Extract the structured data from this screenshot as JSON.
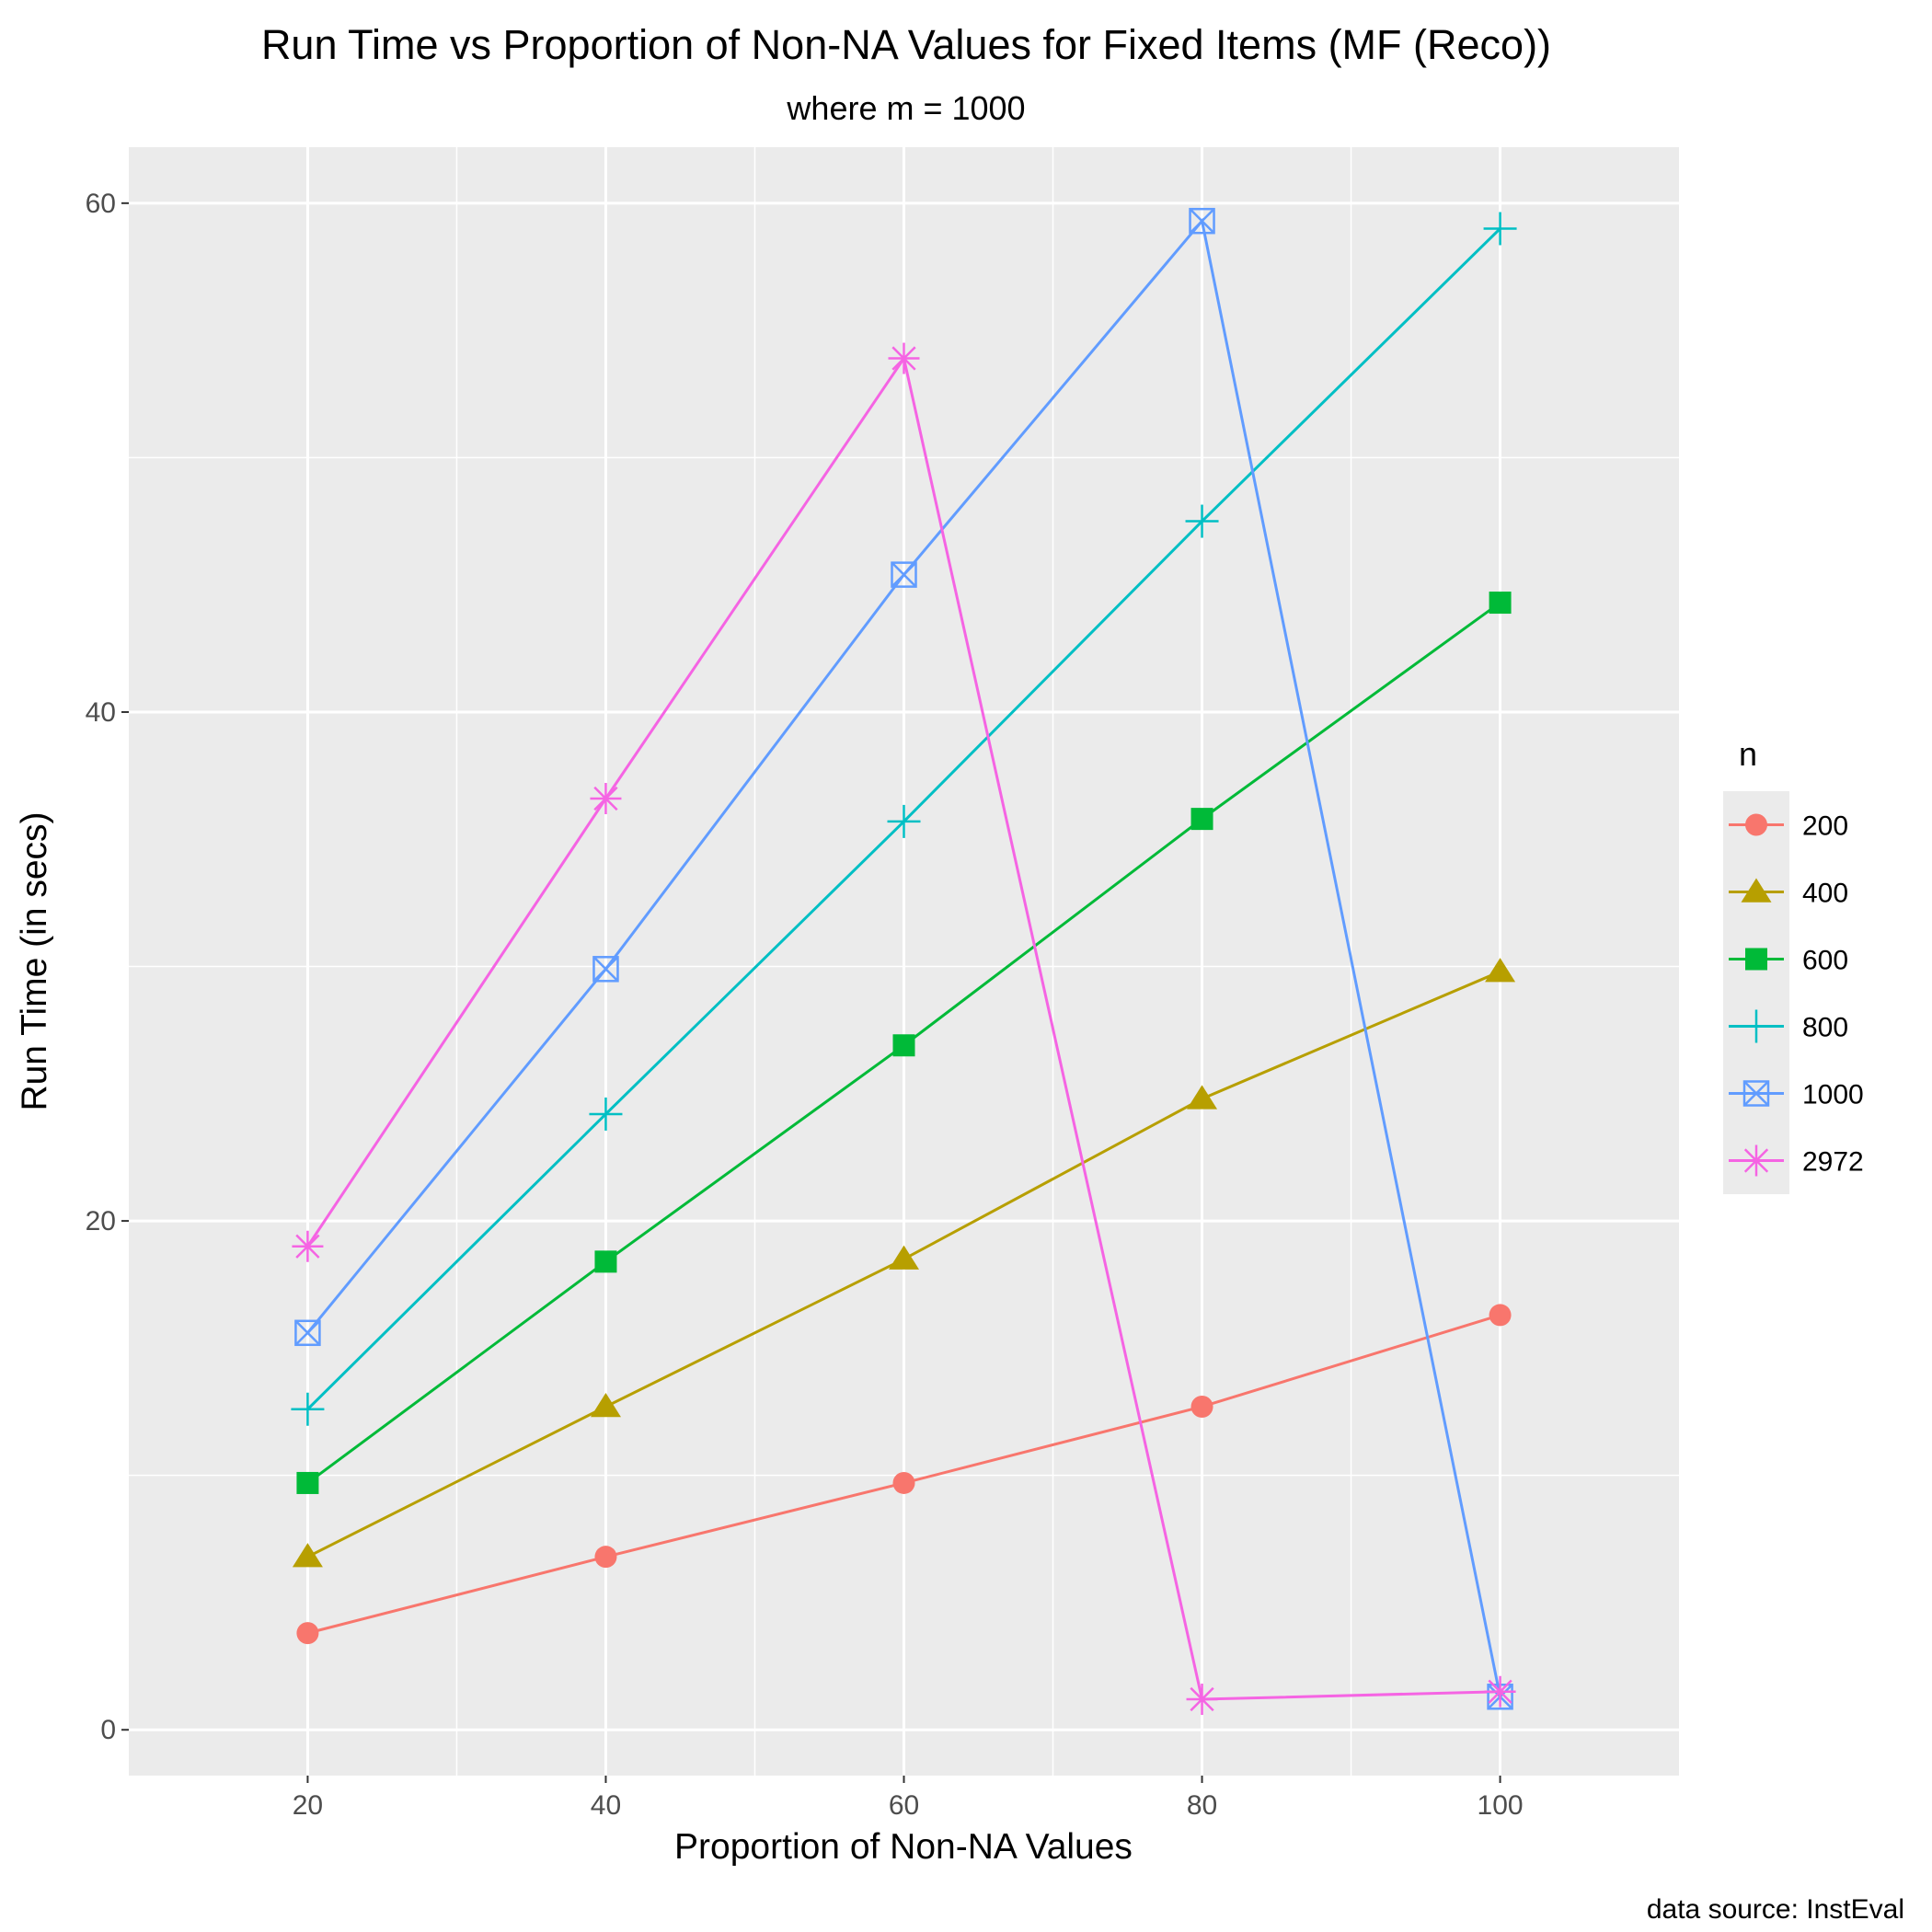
{
  "chart_data": {
    "type": "line",
    "title": "Run Time vs Proportion of Non-NA Values for Fixed Items (MF (Reco))",
    "subtitle": "where m = 1000",
    "xlabel": "Proportion of Non-NA Values",
    "ylabel": "Run Time (in secs)",
    "caption": "data source: InstEval",
    "x": [
      20,
      40,
      60,
      80,
      100
    ],
    "xlim": [
      8,
      112
    ],
    "ylim": [
      -1.8,
      62.2
    ],
    "x_ticks": [
      20,
      40,
      60,
      80,
      100
    ],
    "x_tick_labels": [
      "20",
      "40",
      "60",
      "80",
      "100"
    ],
    "y_ticks": [
      0,
      20,
      40,
      60
    ],
    "y_tick_labels": [
      "0",
      "20",
      "40",
      "60"
    ],
    "grid": true,
    "legend": {
      "title": "n",
      "placement": "right"
    },
    "series": [
      {
        "name": "200",
        "color": "#F8766D",
        "marker": "circle",
        "values": [
          3.8,
          6.8,
          9.7,
          12.7,
          16.3
        ]
      },
      {
        "name": "400",
        "color": "#B79F00",
        "marker": "triangle",
        "values": [
          6.8,
          12.7,
          18.5,
          24.8,
          29.8
        ]
      },
      {
        "name": "600",
        "color": "#00BA38",
        "marker": "square",
        "values": [
          9.7,
          18.4,
          26.9,
          35.8,
          44.3
        ]
      },
      {
        "name": "800",
        "color": "#00BFC4",
        "marker": "plus",
        "values": [
          12.6,
          24.2,
          35.7,
          47.5,
          59.0
        ]
      },
      {
        "name": "1000",
        "color": "#619CFF",
        "marker": "boxcross",
        "values": [
          15.6,
          29.9,
          45.4,
          59.3,
          1.3
        ]
      },
      {
        "name": "2972",
        "color": "#F564E3",
        "marker": "asterisk",
        "values": [
          19.0,
          36.6,
          53.9,
          1.2,
          1.5
        ]
      }
    ]
  }
}
